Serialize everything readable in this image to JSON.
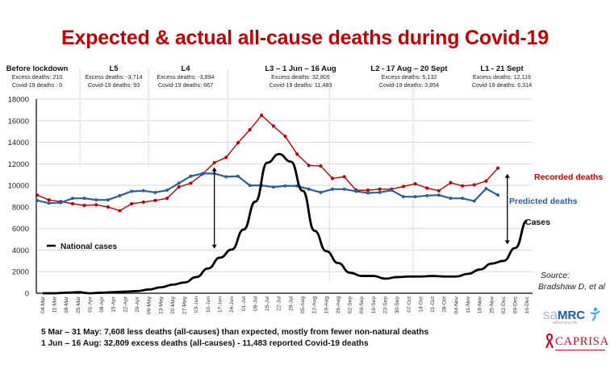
{
  "chart_data": {
    "type": "line",
    "title": "Expected & actual all-cause deaths during Covid-19",
    "xlabel": "",
    "ylabel": "",
    "ylim": [
      0,
      18000
    ],
    "yticks": [
      0,
      2000,
      4000,
      6000,
      8000,
      10000,
      12000,
      14000,
      16000,
      18000
    ],
    "grid": true,
    "categories": [
      "04-Mar",
      "11-Mar",
      "18-Mar",
      "25-Mar",
      "01-Apr",
      "08-Apr",
      "15-Apr",
      "22-Apr",
      "29-Apr",
      "06-May",
      "13-May",
      "20-May",
      "27-May",
      "03-Jun",
      "10-Jun",
      "17-Jun",
      "24-Jun",
      "01-Jul",
      "08-Jul",
      "15-Jul",
      "22-Jul",
      "29-Jul",
      "05-Aug",
      "12-Aug",
      "19-Aug",
      "26-Aug",
      "02-Sep",
      "09-Sep",
      "16-Sep",
      "23-Sep",
      "30-Sep",
      "07-Oct",
      "14-Oct",
      "21-Oct",
      "28-Oct",
      "04-Nov",
      "11-Nov",
      "18-Nov",
      "25-Nov",
      "02-Dec",
      "09-Dec",
      "16-Dec"
    ],
    "series": [
      {
        "name": "Recorded deaths",
        "color": "#c00000",
        "marker": "circle",
        "values": [
          9100,
          8650,
          8500,
          8300,
          8150,
          8200,
          8000,
          7650,
          8300,
          8450,
          8600,
          8800,
          9850,
          10200,
          11050,
          12100,
          12600,
          13950,
          15150,
          16500,
          15500,
          14550,
          12900,
          11850,
          11800,
          10650,
          10800,
          9550,
          9550,
          9650,
          9650,
          9900,
          10150,
          9750,
          9500,
          10250,
          9950,
          10050,
          10400,
          11600
        ],
        "label": "Recorded deaths"
      },
      {
        "name": "Predicted deaths",
        "color": "#2e5e9e",
        "marker": "circle",
        "values": [
          8600,
          8350,
          8400,
          8800,
          8800,
          8650,
          8650,
          9050,
          9450,
          9500,
          9350,
          9550,
          10200,
          10850,
          11100,
          11100,
          10800,
          10850,
          10000,
          10000,
          9850,
          9950,
          9950,
          9650,
          9350,
          9650,
          9650,
          9450,
          9300,
          9350,
          9550,
          8950,
          8950,
          9050,
          9100,
          8800,
          8800,
          8550,
          9700,
          9100
        ],
        "label": "Predicted deaths"
      },
      {
        "name": "National cases",
        "color": "#000000",
        "marker": "none",
        "smooth": true,
        "values": [
          0,
          0,
          50,
          100,
          0,
          50,
          100,
          150,
          200,
          350,
          550,
          800,
          1000,
          1500,
          2300,
          3300,
          4050,
          5900,
          8500,
          12100,
          12900,
          12200,
          9500,
          5800,
          3900,
          2800,
          1900,
          1600,
          1600,
          1350,
          1500,
          1550,
          1550,
          1600,
          1550,
          1550,
          1800,
          2200,
          2750,
          3000,
          4200,
          6750
        ],
        "label": "Cases"
      }
    ],
    "legend": {
      "entries": [
        "National cases"
      ],
      "placement": "left-middle"
    },
    "annotations": [
      {
        "text": "Recorded deaths",
        "color": "#c00000",
        "placement": "right"
      },
      {
        "text": "Predicted deaths",
        "color": "#2e5e9e",
        "placement": "right"
      },
      {
        "text": "Cases",
        "color": "#111111",
        "placement": "right"
      },
      {
        "type": "double-arrow",
        "at": "17-Jun",
        "from": 4000,
        "to": 12000
      },
      {
        "type": "double-arrow",
        "at": "02-Dec",
        "from": 4300,
        "to": 11500
      }
    ],
    "phases": [
      {
        "title": "Before lockdown",
        "excess": "Excess deaths: 210",
        "covid": "Covid-19 deaths : 0"
      },
      {
        "title": "L5",
        "excess": "Excess deaths: -3,714",
        "covid": "Covid-19 deaths: 93"
      },
      {
        "title": "L4",
        "excess": "Excess deaths: -3,894",
        "covid": "Covid-19 deaths: 667"
      },
      {
        "title": "L3 – 1 Jun – 16 Aug",
        "excess": "Excess deaths: 32,809",
        "covid": "Covid-19 deaths: 11,483"
      },
      {
        "title": "L2 - 17 Aug – 20 Sept",
        "excess": "Excess deaths: 5,132",
        "covid": "Covid-19 deaths: 3,854"
      },
      {
        "title": "L1 - 21 Sept",
        "excess": "Excess deaths: 12,116",
        "covid": "Covid-19 deaths: 6,314"
      }
    ]
  },
  "header": {
    "title": "Expected & actual all-cause deaths during Covid-19"
  },
  "legend_label": "National cases",
  "labels": {
    "recorded": "Recorded deaths",
    "predicted": "Predicted deaths",
    "cases": "Cases"
  },
  "footnotes": [
    "5 Mar – 31 May: 7,608 less deaths (all-causes) than expected, mostly from fewer non-natural deaths",
    "1 Jun – 16 Aug: 32,809 excess deaths (all-causes) - 11,483 reported Covid-19 deaths"
  ],
  "source": {
    "line1": "Source:",
    "line2": "Bradshaw D, et al"
  },
  "logos": {
    "samrc_a": "sa",
    "samrc_b": "MRC",
    "samrc_tag": "advancing life",
    "caprisa": "CAPRISA"
  },
  "colors": {
    "title": "#c00000",
    "recorded": "#c00000",
    "predicted": "#2e5e9e",
    "cases": "#000000"
  }
}
